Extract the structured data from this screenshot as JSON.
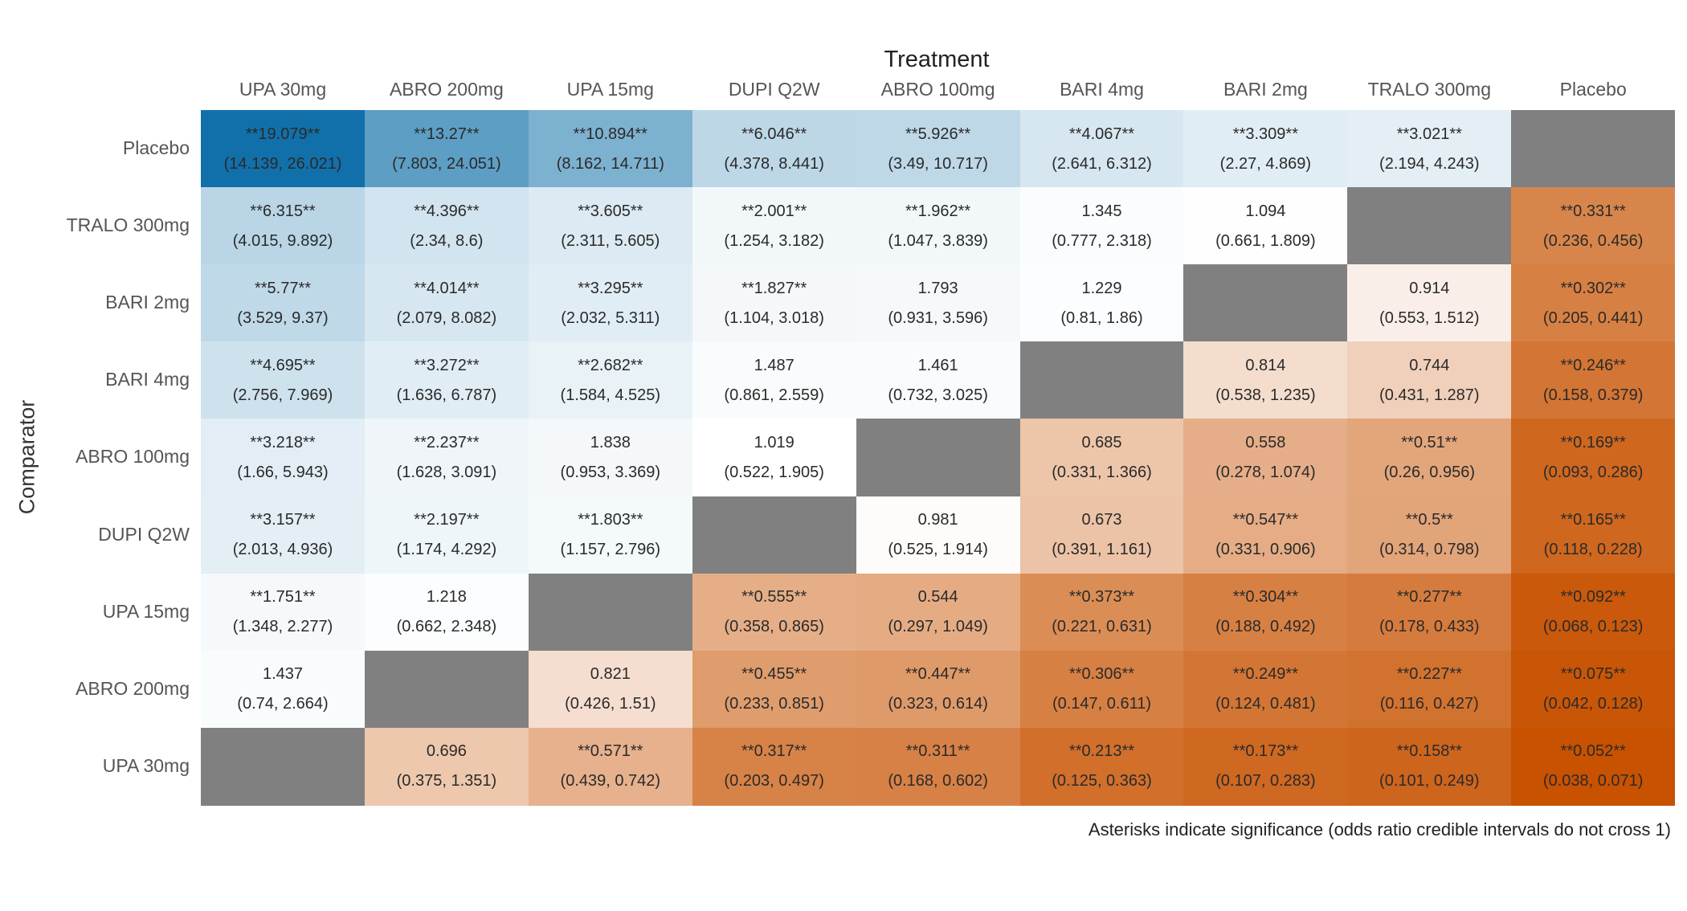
{
  "chart_data": {
    "type": "heatmap",
    "title": "Treatment",
    "xlabel": "Treatment",
    "ylabel": "Comparator",
    "x_categories": [
      "UPA 30mg",
      "ABRO 200mg",
      "UPA 15mg",
      "DUPI Q2W",
      "ABRO 100mg",
      "BARI 4mg",
      "BARI 2mg",
      "TRALO 300mg",
      "Placebo"
    ],
    "y_categories": [
      "Placebo",
      "TRALO 300mg",
      "BARI 2mg",
      "BARI 4mg",
      "ABRO 100mg",
      "DUPI Q2W",
      "UPA 15mg",
      "ABRO 200mg",
      "UPA 30mg"
    ],
    "colors": {
      "high": "#1170aa",
      "mid": "#ffffff",
      "low": "#c85200",
      "diagonal": "#808080"
    },
    "cells": [
      [
        [
          "**19.079**",
          "(14.139, 26.021)"
        ],
        [
          "**13.27**",
          "(7.803, 24.051)"
        ],
        [
          "**10.894**",
          "(8.162, 14.711)"
        ],
        [
          "**6.046**",
          "(4.378, 8.441)"
        ],
        [
          "**5.926**",
          "(3.49, 10.717)"
        ],
        [
          "**4.067**",
          "(2.641, 6.312)"
        ],
        [
          "**3.309**",
          "(2.27, 4.869)"
        ],
        [
          "**3.021**",
          "(2.194, 4.243)"
        ],
        null
      ],
      [
        [
          "**6.315**",
          "(4.015, 9.892)"
        ],
        [
          "**4.396**",
          "(2.34, 8.6)"
        ],
        [
          "**3.605**",
          "(2.311, 5.605)"
        ],
        [
          "**2.001**",
          "(1.254, 3.182)"
        ],
        [
          "**1.962**",
          "(1.047, 3.839)"
        ],
        [
          "1.345",
          "(0.777, 2.318)"
        ],
        [
          "1.094",
          "(0.661, 1.809)"
        ],
        null,
        [
          "**0.331**",
          "(0.236, 0.456)"
        ]
      ],
      [
        [
          "**5.77**",
          "(3.529, 9.37)"
        ],
        [
          "**4.014**",
          "(2.079, 8.082)"
        ],
        [
          "**3.295**",
          "(2.032, 5.311)"
        ],
        [
          "**1.827**",
          "(1.104, 3.018)"
        ],
        [
          "1.793",
          "(0.931, 3.596)"
        ],
        [
          "1.229",
          "(0.81, 1.86)"
        ],
        null,
        [
          "0.914",
          "(0.553, 1.512)"
        ],
        [
          "**0.302**",
          "(0.205, 0.441)"
        ]
      ],
      [
        [
          "**4.695**",
          "(2.756, 7.969)"
        ],
        [
          "**3.272**",
          "(1.636, 6.787)"
        ],
        [
          "**2.682**",
          "(1.584, 4.525)"
        ],
        [
          "1.487",
          "(0.861, 2.559)"
        ],
        [
          "1.461",
          "(0.732, 3.025)"
        ],
        null,
        [
          "0.814",
          "(0.538, 1.235)"
        ],
        [
          "0.744",
          "(0.431, 1.287)"
        ],
        [
          "**0.246**",
          "(0.158, 0.379)"
        ]
      ],
      [
        [
          "**3.218**",
          "(1.66, 5.943)"
        ],
        [
          "**2.237**",
          "(1.628, 3.091)"
        ],
        [
          "1.838",
          "(0.953, 3.369)"
        ],
        [
          "1.019",
          "(0.522, 1.905)"
        ],
        null,
        [
          "0.685",
          "(0.331, 1.366)"
        ],
        [
          "0.558",
          "(0.278, 1.074)"
        ],
        [
          "**0.51**",
          "(0.26, 0.956)"
        ],
        [
          "**0.169**",
          "(0.093, 0.286)"
        ]
      ],
      [
        [
          "**3.157**",
          "(2.013, 4.936)"
        ],
        [
          "**2.197**",
          "(1.174, 4.292)"
        ],
        [
          "**1.803**",
          "(1.157, 2.796)"
        ],
        null,
        [
          "0.981",
          "(0.525, 1.914)"
        ],
        [
          "0.673",
          "(0.391, 1.161)"
        ],
        [
          "**0.547**",
          "(0.331, 0.906)"
        ],
        [
          "**0.5**",
          "(0.314, 0.798)"
        ],
        [
          "**0.165**",
          "(0.118, 0.228)"
        ]
      ],
      [
        [
          "**1.751**",
          "(1.348, 2.277)"
        ],
        [
          "1.218",
          "(0.662, 2.348)"
        ],
        null,
        [
          "**0.555**",
          "(0.358, 0.865)"
        ],
        [
          "0.544",
          "(0.297, 1.049)"
        ],
        [
          "**0.373**",
          "(0.221, 0.631)"
        ],
        [
          "**0.304**",
          "(0.188, 0.492)"
        ],
        [
          "**0.277**",
          "(0.178, 0.433)"
        ],
        [
          "**0.092**",
          "(0.068, 0.123)"
        ]
      ],
      [
        [
          "1.437",
          "(0.74, 2.664)"
        ],
        null,
        [
          "0.821",
          "(0.426, 1.51)"
        ],
        [
          "**0.455**",
          "(0.233, 0.851)"
        ],
        [
          "**0.447**",
          "(0.323, 0.614)"
        ],
        [
          "**0.306**",
          "(0.147, 0.611)"
        ],
        [
          "**0.249**",
          "(0.124, 0.481)"
        ],
        [
          "**0.227**",
          "(0.116, 0.427)"
        ],
        [
          "**0.075**",
          "(0.042, 0.128)"
        ]
      ],
      [
        null,
        [
          "0.696",
          "(0.375, 1.351)"
        ],
        [
          "**0.571**",
          "(0.439, 0.742)"
        ],
        [
          "**0.317**",
          "(0.203, 0.497)"
        ],
        [
          "**0.311**",
          "(0.168, 0.602)"
        ],
        [
          "**0.213**",
          "(0.125, 0.363)"
        ],
        [
          "**0.173**",
          "(0.107, 0.283)"
        ],
        [
          "**0.158**",
          "(0.101, 0.249)"
        ],
        [
          "**0.052**",
          "(0.038, 0.071)"
        ]
      ]
    ],
    "footnote": "Asterisks indicate significance (odds ratio credible intervals do not cross 1)"
  }
}
